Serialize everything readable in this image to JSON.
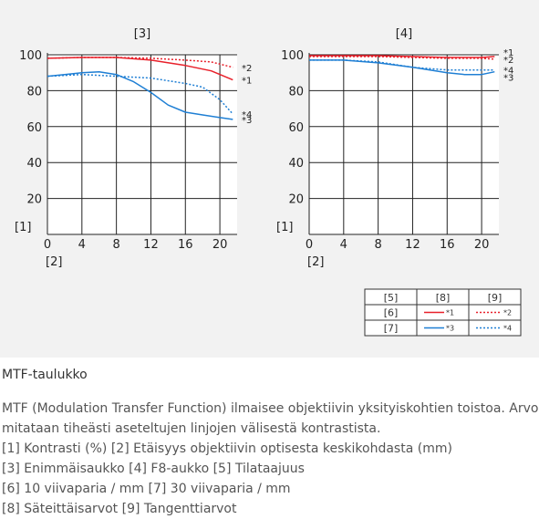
{
  "chart_data": [
    {
      "type": "line",
      "panel_label": "[3]",
      "ylabel": "[1]",
      "xlabel": "[2]",
      "xlim": [
        0,
        22
      ],
      "ylim": [
        0,
        100
      ],
      "xticks": [
        "0",
        "4",
        "8",
        "12",
        "16",
        "20"
      ],
      "yticks": [
        "20",
        "40",
        "60",
        "80",
        "100"
      ],
      "grid": true,
      "series": [
        {
          "name": "*1",
          "color": "#e8202a",
          "style": "solid",
          "x": [
            0,
            4,
            8,
            12,
            16,
            19,
            21.5
          ],
          "y": [
            98,
            98.5,
            98.5,
            97,
            94,
            91,
            86
          ]
        },
        {
          "name": "*2",
          "color": "#e8202a",
          "style": "dotted",
          "x": [
            0,
            4,
            8,
            12,
            16,
            19,
            21.5
          ],
          "y": [
            98,
            98.5,
            98.5,
            98,
            97,
            96,
            93
          ]
        },
        {
          "name": "*3",
          "color": "#1f7fd4",
          "style": "solid",
          "x": [
            0,
            2,
            4,
            6,
            8,
            10,
            12,
            14,
            16,
            18,
            20,
            21.5
          ],
          "y": [
            88,
            89,
            90,
            90.5,
            89,
            85,
            79,
            72,
            68,
            66.5,
            65,
            64
          ]
        },
        {
          "name": "*4",
          "color": "#1f7fd4",
          "style": "dotted",
          "x": [
            0,
            4,
            8,
            12,
            16,
            18,
            20,
            21.5
          ],
          "y": [
            88,
            89,
            88,
            87,
            84,
            82,
            75,
            67
          ]
        }
      ],
      "series_labels": [
        {
          "text": "*2",
          "y": 93
        },
        {
          "text": "*1",
          "y": 86
        },
        {
          "text": "*4",
          "y": 67
        },
        {
          "text": "*3",
          "y": 64
        }
      ]
    },
    {
      "type": "line",
      "panel_label": "[4]",
      "ylabel": "[1]",
      "xlabel": "[2]",
      "xlim": [
        0,
        22
      ],
      "ylim": [
        0,
        100
      ],
      "xticks": [
        "0",
        "4",
        "8",
        "12",
        "16",
        "20"
      ],
      "yticks": [
        "20",
        "40",
        "60",
        "80",
        "100"
      ],
      "grid": true,
      "series": [
        {
          "name": "*1",
          "color": "#e8202a",
          "style": "solid",
          "x": [
            0,
            4,
            8,
            12,
            16,
            20,
            21.5
          ],
          "y": [
            99.5,
            99.5,
            99.5,
            99,
            98.5,
            98.5,
            99
          ]
        },
        {
          "name": "*2",
          "color": "#e8202a",
          "style": "dotted",
          "x": [
            0,
            4,
            8,
            12,
            16,
            20,
            21.5
          ],
          "y": [
            99,
            99,
            99,
            98.5,
            98,
            98,
            97.5
          ]
        },
        {
          "name": "*3",
          "color": "#1f7fd4",
          "style": "solid",
          "x": [
            0,
            4,
            8,
            12,
            16,
            18,
            20,
            21.5
          ],
          "y": [
            97,
            97,
            95.5,
            93,
            90,
            89,
            89,
            90.5
          ]
        },
        {
          "name": "*4",
          "color": "#1f7fd4",
          "style": "dotted",
          "x": [
            0,
            4,
            8,
            12,
            16,
            20,
            21.5
          ],
          "y": [
            97,
            97,
            96,
            93,
            91.5,
            91.5,
            91.5
          ]
        }
      ],
      "series_labels": [
        {
          "text": "*1",
          "y": 101.5
        },
        {
          "text": "*2",
          "y": 97.5
        },
        {
          "text": "*4",
          "y": 91.5
        },
        {
          "text": "*3",
          "y": 87.5
        }
      ]
    }
  ],
  "legend_table": {
    "headers": [
      "[5]",
      "[8]",
      "[9]"
    ],
    "rows": [
      {
        "label": "[6]",
        "radial": "*1",
        "tangential": "*2",
        "radial_color": "#e8202a",
        "tangential_color": "#e8202a"
      },
      {
        "label": "[7]",
        "radial": "*3",
        "tangential": "*4",
        "radial_color": "#1f7fd4",
        "tangential_color": "#1f7fd4"
      }
    ]
  },
  "caption": {
    "title": "MTF-taulukko",
    "lines": [
      "MTF (Modulation Transfer Function) ilmaisee objektiivin yksityiskohtien toistoa. Arvo",
      "mitataan tiheästi aseteltujen linjojen välisestä kontrastista.",
      "[1] Kontrasti (%)  [2] Etäisyys objektiivin optisesta keskikohdasta (mm)",
      "[3] Enimmäisaukko  [4] F8-aukko  [5] Tilataajuus",
      "[6] 10 viivaparia / mm  [7] 30 viivaparia / mm",
      "[8] Säteittäisarvot  [9] Tangenttiarvot"
    ]
  }
}
